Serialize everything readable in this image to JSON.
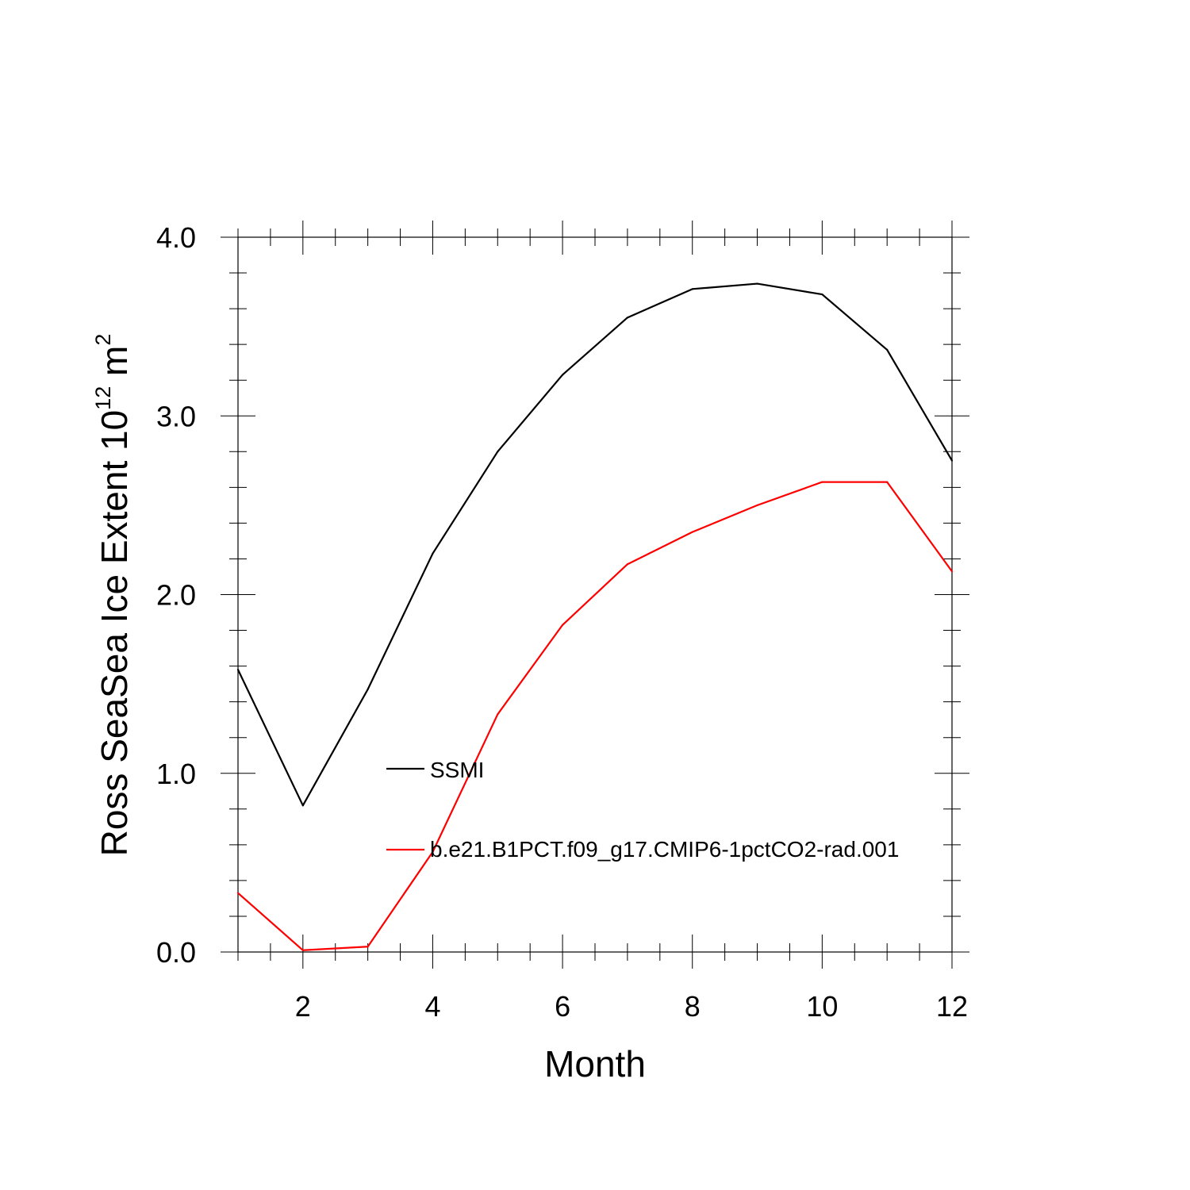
{
  "chart_data": {
    "type": "line",
    "title": "",
    "xlabel": "Month",
    "ylabel_main": "Ross SeaSea Ice Extent 10",
    "ylabel_sup": "12",
    "ylabel_unit": " m",
    "ylabel_unit_sup": "2",
    "xlim": [
      1,
      12
    ],
    "ylim": [
      0.0,
      4.0
    ],
    "x_ticks": [
      2,
      4,
      6,
      8,
      10,
      12
    ],
    "x_tick_labels": [
      "2",
      "4",
      "6",
      "8",
      "10",
      "12"
    ],
    "y_ticks": [
      0.0,
      1.0,
      2.0,
      3.0,
      4.0
    ],
    "y_tick_labels": [
      "0.0",
      "1.0",
      "2.0",
      "3.0",
      "4.0"
    ],
    "grid": false,
    "legend_position": "inside-center",
    "x": [
      1,
      2,
      3,
      4,
      5,
      6,
      7,
      8,
      9,
      10,
      11,
      12
    ],
    "series": [
      {
        "name": "SSMI",
        "color": "#000000",
        "values": [
          1.58,
          0.82,
          1.47,
          2.23,
          2.8,
          3.23,
          3.55,
          3.71,
          3.74,
          3.68,
          3.37,
          2.75
        ]
      },
      {
        "name": "b.e21.B1PCT.f09_g17.CMIP6-1pctCO2-rad.001",
        "color": "#ff0000",
        "values": [
          0.33,
          0.01,
          0.03,
          0.56,
          1.33,
          1.83,
          2.17,
          2.35,
          2.5,
          2.63,
          2.63,
          2.13
        ]
      }
    ]
  }
}
